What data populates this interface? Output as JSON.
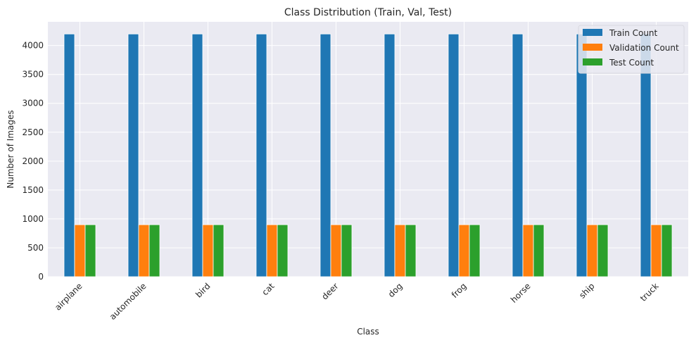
{
  "chart_data": {
    "type": "bar",
    "title": "Class Distribution (Train, Val, Test)",
    "xlabel": "Class",
    "ylabel": "Number of Images",
    "categories": [
      "airplane",
      "automobile",
      "bird",
      "cat",
      "deer",
      "dog",
      "frog",
      "horse",
      "ship",
      "truck"
    ],
    "series": [
      {
        "name": "Train Count",
        "color": "#1f77b4",
        "values": [
          4200,
          4200,
          4200,
          4200,
          4200,
          4200,
          4200,
          4200,
          4200,
          4200
        ]
      },
      {
        "name": "Validation Count",
        "color": "#ff7f0e",
        "values": [
          900,
          900,
          900,
          900,
          900,
          900,
          900,
          900,
          900,
          900
        ]
      },
      {
        "name": "Test Count",
        "color": "#2ca02c",
        "values": [
          900,
          900,
          900,
          900,
          900,
          900,
          900,
          900,
          900,
          900
        ]
      }
    ],
    "ylim": [
      0,
      4410
    ],
    "yticks": [
      0,
      500,
      1000,
      1500,
      2000,
      2500,
      3000,
      3500,
      4000
    ],
    "grid": true,
    "legend_position": "top-right",
    "background": "#eaeaf2"
  }
}
